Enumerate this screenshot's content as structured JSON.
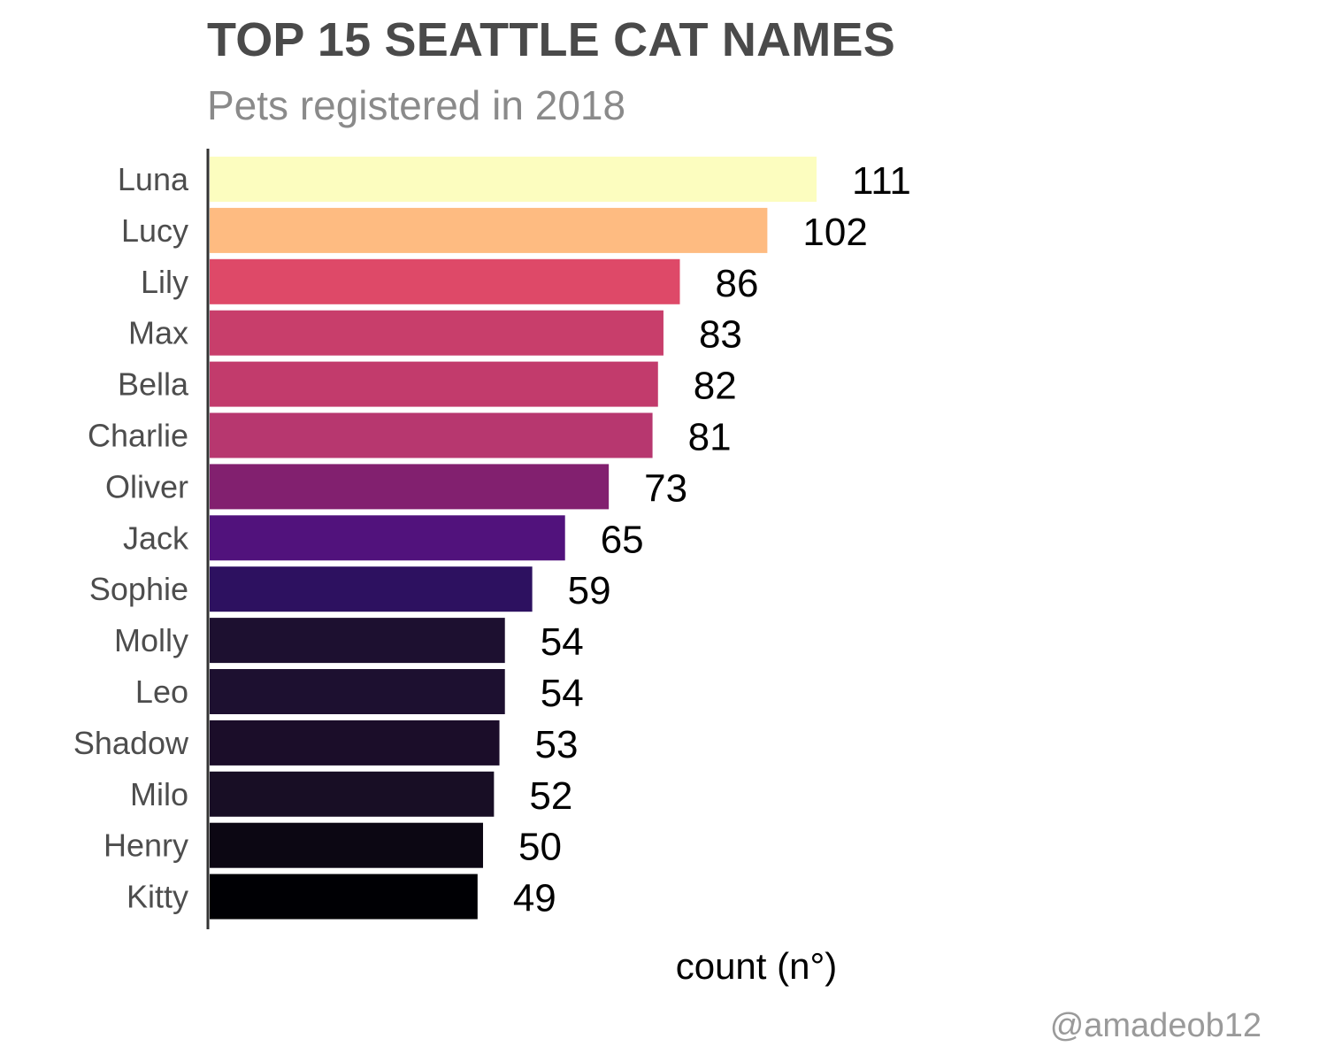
{
  "chart_data": {
    "type": "bar",
    "orientation": "horizontal",
    "title": "TOP 15 SEATTLE CAT NAMES",
    "subtitle": "Pets registered in 2018",
    "xlabel": "count (n°)",
    "ylabel": "",
    "caption": "@amadeob12",
    "categories": [
      "Luna",
      "Lucy",
      "Lily",
      "Max",
      "Bella",
      "Charlie",
      "Oliver",
      "Jack",
      "Sophie",
      "Molly",
      "Leo",
      "Shadow",
      "Milo",
      "Henry",
      "Kitty"
    ],
    "values": [
      111,
      102,
      86,
      83,
      82,
      81,
      73,
      65,
      59,
      54,
      54,
      53,
      52,
      50,
      49
    ],
    "colors": [
      "#FCFDBF",
      "#FEBB81",
      "#DE4968",
      "#C83E6B",
      "#C23B6C",
      "#B7376F",
      "#82206F",
      "#51127C",
      "#2D1160",
      "#1D1030",
      "#1D1030",
      "#1B0D29",
      "#180E25",
      "#0C0713",
      "#000004"
    ],
    "xlim": [
      0,
      111
    ],
    "grid": false,
    "legend": "none",
    "data_labels": true
  }
}
